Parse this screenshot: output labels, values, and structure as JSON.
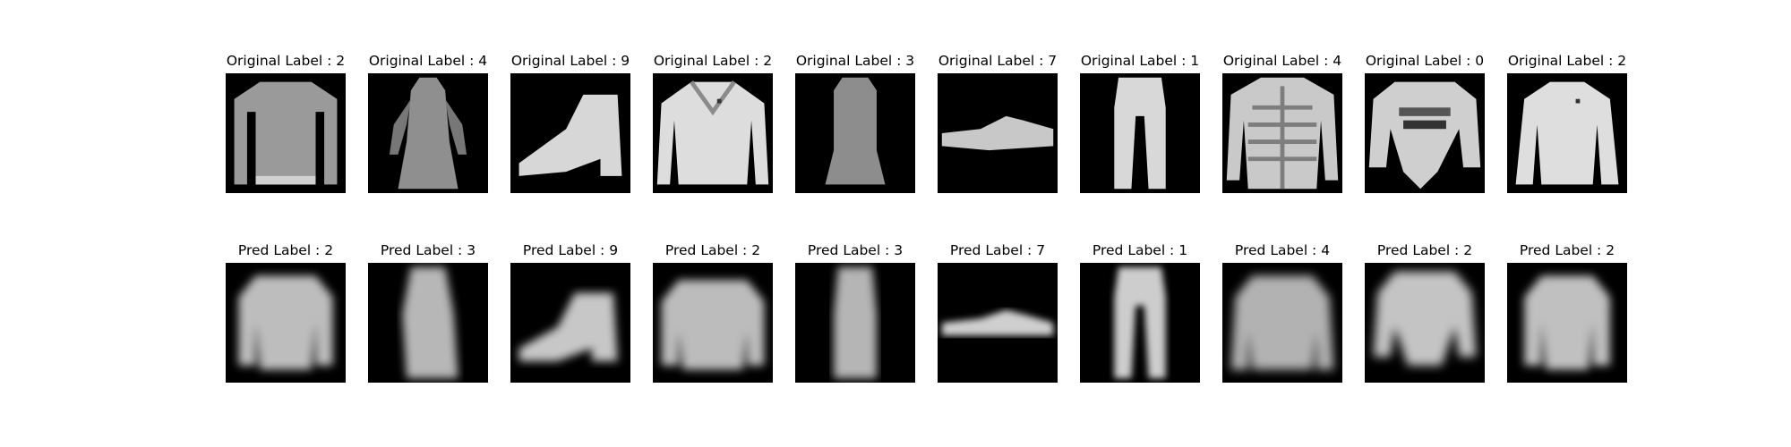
{
  "rows": [
    {
      "name": "original",
      "items": [
        {
          "label": "Original Label : 2",
          "shape": "sweater"
        },
        {
          "label": "Original Label : 4",
          "shape": "dress"
        },
        {
          "label": "Original Label : 9",
          "shape": "boot"
        },
        {
          "label": "Original Label : 2",
          "shape": "sweater-light"
        },
        {
          "label": "Original Label : 3",
          "shape": "dress-narrow"
        },
        {
          "label": "Original Label : 7",
          "shape": "sneaker"
        },
        {
          "label": "Original Label : 1",
          "shape": "trouser"
        },
        {
          "label": "Original Label : 4",
          "shape": "coat"
        },
        {
          "label": "Original Label : 0",
          "shape": "top"
        },
        {
          "label": "Original Label : 2",
          "shape": "sweater-light"
        }
      ]
    },
    {
      "name": "pred",
      "items": [
        {
          "label": "Pred Label : 2",
          "shape": "blur-sweater"
        },
        {
          "label": "Pred Label : 3",
          "shape": "blur-dress"
        },
        {
          "label": "Pred Label : 9",
          "shape": "blur-boot"
        },
        {
          "label": "Pred Label : 2",
          "shape": "blur-sweater"
        },
        {
          "label": "Pred Label : 3",
          "shape": "blur-dress"
        },
        {
          "label": "Pred Label : 7",
          "shape": "blur-sneaker"
        },
        {
          "label": "Pred Label : 1",
          "shape": "blur-trouser"
        },
        {
          "label": "Pred Label : 4",
          "shape": "blur-sweater"
        },
        {
          "label": "Pred Label : 2",
          "shape": "blur-sweater"
        },
        {
          "label": "Pred Label : 2",
          "shape": "blur-sweater"
        }
      ]
    }
  ]
}
